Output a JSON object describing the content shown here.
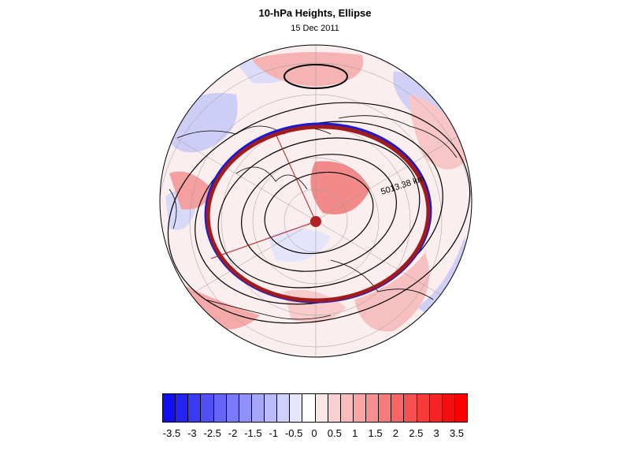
{
  "title": "10-hPa Heights, Ellipse",
  "subtitle": "15 Dec 2011",
  "map": {
    "projection": "polar-stereographic-north",
    "annotation": "5013.38 km",
    "ellipse_colors": {
      "outer": "#1a1ad6",
      "inner": "#a01c1c"
    },
    "field": "10-hPa height anomaly"
  },
  "colorbar": {
    "colors": [
      "#0f0ff2",
      "#2424f4",
      "#3a3af5",
      "#5050f6",
      "#6565f7",
      "#7a7af8",
      "#9090f9",
      "#a6a6fa",
      "#bbbbfb",
      "#d0d0fc",
      "#e6e6fd",
      "#ffffff",
      "#fde6e6",
      "#fcd0d0",
      "#fbbbbb",
      "#faa6a6",
      "#f99090",
      "#f87a7a",
      "#f76565",
      "#f65050",
      "#f53a3a",
      "#f42424",
      "#f20f0f",
      "#ff0000"
    ],
    "labels": [
      "-3.5",
      "-3",
      "-2.5",
      "-2",
      "-1.5",
      "-1",
      "-0.5",
      "0",
      "0.5",
      "1",
      "1.5",
      "2",
      "2.5",
      "3",
      "3.5"
    ]
  }
}
